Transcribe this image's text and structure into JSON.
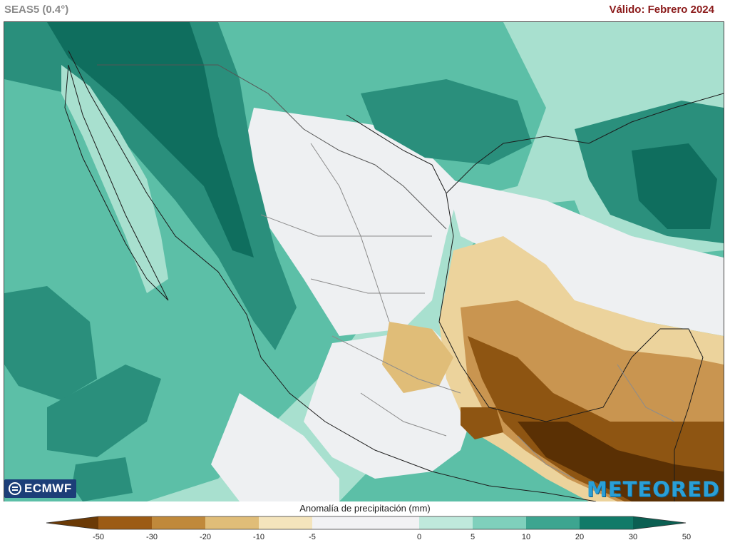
{
  "header": {
    "model": "SEAS5 (0.4°)",
    "valid": "Válido: Febrero 2024"
  },
  "logos": {
    "left": "ECMWF",
    "right": "METEORED"
  },
  "legend": {
    "title": "Anomalía de precipitación (mm)",
    "ticks": [
      "-50",
      "-30",
      "-20",
      "-10",
      "-5",
      "0",
      "5",
      "10",
      "20",
      "30",
      "50"
    ],
    "colors": [
      "#6b3a06",
      "#9c5b15",
      "#c0893b",
      "#e0bd78",
      "#f4e4bc",
      "#f2f2f4",
      "#f2f2f4",
      "#bfe9dc",
      "#7fd0bc",
      "#3da590",
      "#117a68",
      "#0b5f52"
    ]
  },
  "map": {
    "region": "Mexico",
    "palette": {
      "ocean_teal": "#5cbfa7",
      "deep_teal": "#2a8f7c",
      "darkest_teal": "#0f6e5e",
      "light_teal": "#a8e0cf",
      "neutral": "#eef0f2",
      "light_tan": "#ecd39c",
      "tan": "#c99550",
      "brown": "#8e5512",
      "dark_brown": "#5a3004"
    }
  }
}
